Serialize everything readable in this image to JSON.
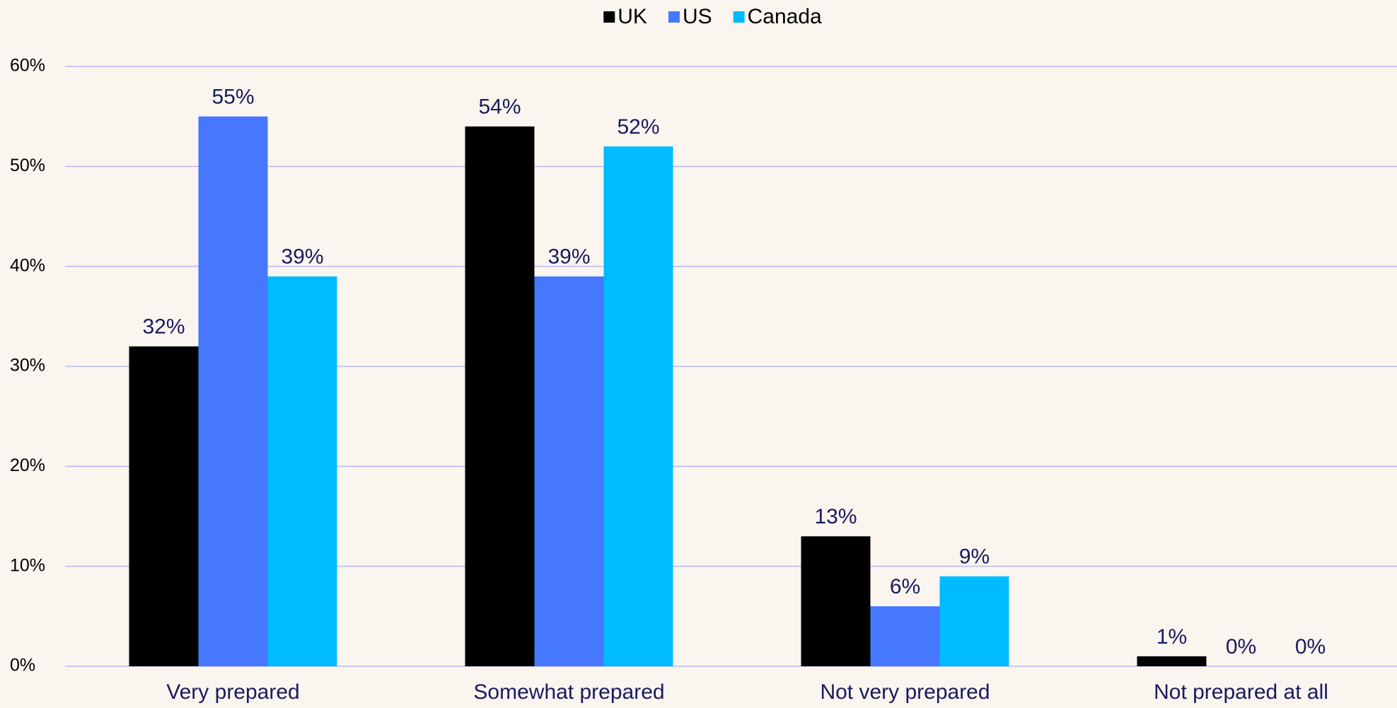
{
  "chart_data": {
    "type": "bar",
    "categories": [
      "Very prepared",
      "Somewhat prepared",
      "Not very prepared",
      "Not prepared at all"
    ],
    "series": [
      {
        "name": "UK",
        "color": "#000000",
        "values": [
          32,
          54,
          13,
          1
        ],
        "value_labels": [
          "32%",
          "54%",
          "13%",
          "1%"
        ]
      },
      {
        "name": "US",
        "color": "#4577ff",
        "values": [
          55,
          39,
          6,
          0
        ],
        "value_labels": [
          "55%",
          "39%",
          "6%",
          "0%"
        ]
      },
      {
        "name": "Canada",
        "color": "#00bbff",
        "values": [
          39,
          52,
          9,
          0
        ],
        "value_labels": [
          "39%",
          "52%",
          "9%",
          "0%"
        ]
      }
    ],
    "ylim": [
      0,
      60
    ],
    "yticks": [
      {
        "value": 0,
        "label": "0%"
      },
      {
        "value": 10,
        "label": "10%"
      },
      {
        "value": 20,
        "label": "20%"
      },
      {
        "value": 30,
        "label": "30%"
      },
      {
        "value": 40,
        "label": "40%"
      },
      {
        "value": 50,
        "label": "50%"
      },
      {
        "value": 60,
        "label": "60%"
      }
    ],
    "grid": true,
    "legend": "top"
  }
}
